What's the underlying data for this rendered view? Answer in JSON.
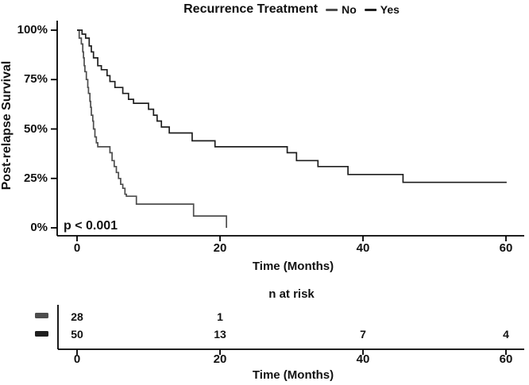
{
  "figure": {
    "title": "Recurrence Treatment",
    "p_value": "p < 0.001",
    "background": "#ffffff",
    "text_color": "#111111",
    "axis_color": "#000000"
  },
  "legend": {
    "items": [
      {
        "label": "No",
        "color": "#4d4d4d"
      },
      {
        "label": "Yes",
        "color": "#1f1f1f"
      }
    ]
  },
  "axes": {
    "y_label": "Post-relapse Survival",
    "x_label": "Time (Months)",
    "y_ticks": [
      {
        "label": "100%",
        "value": 100
      },
      {
        "label": "75%",
        "value": 75
      },
      {
        "label": "50%",
        "value": 50
      },
      {
        "label": "25%",
        "value": 25
      },
      {
        "label": "0%",
        "value": 0
      }
    ],
    "x_ticks": [
      {
        "label": "0",
        "value": 0
      },
      {
        "label": "20",
        "value": 20
      },
      {
        "label": "40",
        "value": 40
      },
      {
        "label": "60",
        "value": 60
      }
    ]
  },
  "risk_table": {
    "title": "n at risk",
    "x_label": "Time (Months)",
    "rows": [
      {
        "group": "No",
        "color": "#4d4d4d",
        "counts": [
          {
            "t": 0,
            "n": "28"
          },
          {
            "t": 20,
            "n": "1"
          }
        ]
      },
      {
        "group": "Yes",
        "color": "#1f1f1f",
        "counts": [
          {
            "t": 0,
            "n": "50"
          },
          {
            "t": 20,
            "n": "13"
          },
          {
            "t": 40,
            "n": "7"
          },
          {
            "t": 60,
            "n": "4"
          }
        ]
      }
    ]
  },
  "chart_data": {
    "type": "line",
    "subtype": "kaplan-meier-step",
    "title": "Recurrence Treatment",
    "xlabel": "Time (Months)",
    "ylabel": "Post-relapse Survival",
    "xlim": [
      0,
      62
    ],
    "ylim": [
      0,
      100
    ],
    "x_ticks": [
      0,
      20,
      40,
      60
    ],
    "y_ticks_percent": [
      0,
      25,
      50,
      75,
      100
    ],
    "annotation": "p < 0.001",
    "legend_position": "top",
    "grid": false,
    "series": [
      {
        "name": "No",
        "color": "#4d4d4d",
        "steps": [
          [
            0,
            100
          ],
          [
            0.3,
            96
          ],
          [
            0.6,
            93
          ],
          [
            0.8,
            89
          ],
          [
            0.9,
            86
          ],
          [
            1.0,
            82
          ],
          [
            1.1,
            79
          ],
          [
            1.3,
            75
          ],
          [
            1.5,
            71
          ],
          [
            1.6,
            68
          ],
          [
            1.8,
            64
          ],
          [
            1.9,
            61
          ],
          [
            2.0,
            57
          ],
          [
            2.2,
            54
          ],
          [
            2.3,
            50
          ],
          [
            2.5,
            46
          ],
          [
            2.7,
            43
          ],
          [
            2.9,
            41
          ],
          [
            4.6,
            38
          ],
          [
            4.9,
            34
          ],
          [
            5.2,
            31
          ],
          [
            5.5,
            28
          ],
          [
            5.8,
            25
          ],
          [
            6.1,
            22
          ],
          [
            6.4,
            20
          ],
          [
            6.7,
            17
          ],
          [
            6.9,
            16
          ],
          [
            8.3,
            12
          ],
          [
            16.3,
            6
          ],
          [
            20.9,
            0
          ]
        ],
        "end_time": 20.9
      },
      {
        "name": "Yes",
        "color": "#1f1f1f",
        "steps": [
          [
            0,
            100
          ],
          [
            0.7,
            98
          ],
          [
            1.2,
            96
          ],
          [
            1.7,
            92
          ],
          [
            2.0,
            89
          ],
          [
            2.3,
            86
          ],
          [
            2.9,
            82
          ],
          [
            3.4,
            80
          ],
          [
            4.2,
            77
          ],
          [
            4.6,
            74
          ],
          [
            5.3,
            71
          ],
          [
            6.4,
            68
          ],
          [
            7.2,
            65
          ],
          [
            7.9,
            63
          ],
          [
            10.0,
            60
          ],
          [
            10.7,
            57
          ],
          [
            11.2,
            54
          ],
          [
            11.8,
            51
          ],
          [
            12.9,
            48
          ],
          [
            16.1,
            44
          ],
          [
            19.3,
            41
          ],
          [
            29.4,
            38
          ],
          [
            30.7,
            34
          ],
          [
            33.7,
            31
          ],
          [
            37.9,
            27
          ],
          [
            45.6,
            23
          ]
        ],
        "end_time": 60.1
      }
    ],
    "n_at_risk": {
      "times": [
        0,
        20,
        40,
        60
      ],
      "No": [
        28,
        1,
        null,
        null
      ],
      "Yes": [
        50,
        13,
        7,
        4
      ]
    }
  }
}
